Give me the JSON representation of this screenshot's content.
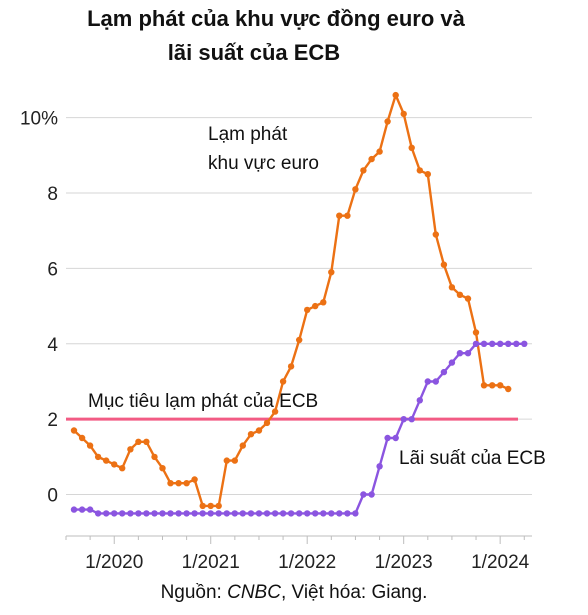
{
  "chart_data": {
    "type": "line",
    "title_line1": "Lạm phát của khu vực đồng euro và",
    "title_line2": "lãi suất của ECB",
    "y_ticks": [
      {
        "value": 0,
        "label": "0"
      },
      {
        "value": 2,
        "label": "2"
      },
      {
        "value": 4,
        "label": "4"
      },
      {
        "value": 6,
        "label": "6"
      },
      {
        "value": 8,
        "label": "8"
      },
      {
        "value": 10,
        "label": "10%"
      }
    ],
    "x_ticks": [
      {
        "value": 2020.0,
        "label": "1/2020"
      },
      {
        "value": 2021.0,
        "label": "1/2021"
      },
      {
        "value": 2022.0,
        "label": "1/2022"
      },
      {
        "value": 2023.0,
        "label": "1/2023"
      },
      {
        "value": 2024.0,
        "label": "1/2024"
      }
    ],
    "xlim": [
      2019.5,
      2024.33
    ],
    "ylim": [
      -1.1,
      11.0
    ],
    "grid": "horizontal",
    "target": {
      "value": 2.0,
      "label": "Mục tiêu lạm phát của ECB",
      "color": "#f25b84"
    },
    "series": [
      {
        "name": "Lạm phát khu vực euro",
        "label_line1": "Lạm phát",
        "label_line2": "khu vực euro",
        "color": "#ec7114",
        "points": [
          [
            2019.583,
            1.7
          ],
          [
            2019.667,
            1.5
          ],
          [
            2019.75,
            1.3
          ],
          [
            2019.833,
            1.0
          ],
          [
            2019.917,
            0.9
          ],
          [
            2020.0,
            0.8
          ],
          [
            2020.083,
            0.7
          ],
          [
            2020.167,
            1.2
          ],
          [
            2020.25,
            1.4
          ],
          [
            2020.333,
            1.4
          ],
          [
            2020.417,
            1.0
          ],
          [
            2020.5,
            0.7
          ],
          [
            2020.583,
            0.3
          ],
          [
            2020.667,
            0.3
          ],
          [
            2020.75,
            0.3
          ],
          [
            2020.833,
            0.4
          ],
          [
            2020.917,
            -0.3
          ],
          [
            2021.0,
            -0.3
          ],
          [
            2021.083,
            -0.3
          ],
          [
            2021.167,
            0.9
          ],
          [
            2021.25,
            0.9
          ],
          [
            2021.333,
            1.3
          ],
          [
            2021.417,
            1.6
          ],
          [
            2021.5,
            1.7
          ],
          [
            2021.583,
            1.9
          ],
          [
            2021.667,
            2.2
          ],
          [
            2021.75,
            3.0
          ],
          [
            2021.833,
            3.4
          ],
          [
            2021.917,
            4.1
          ],
          [
            2022.0,
            4.9
          ],
          [
            2022.083,
            5.0
          ],
          [
            2022.167,
            5.1
          ],
          [
            2022.25,
            5.9
          ],
          [
            2022.333,
            7.4
          ],
          [
            2022.417,
            7.4
          ],
          [
            2022.5,
            8.1
          ],
          [
            2022.583,
            8.6
          ],
          [
            2022.667,
            8.9
          ],
          [
            2022.75,
            9.1
          ],
          [
            2022.833,
            9.9
          ],
          [
            2022.917,
            10.6
          ],
          [
            2023.0,
            10.1
          ],
          [
            2023.083,
            9.2
          ],
          [
            2023.167,
            8.6
          ],
          [
            2023.25,
            8.5
          ],
          [
            2023.333,
            6.9
          ],
          [
            2023.417,
            6.1
          ],
          [
            2023.5,
            5.5
          ],
          [
            2023.583,
            5.3
          ],
          [
            2023.667,
            5.2
          ],
          [
            2023.75,
            4.3
          ],
          [
            2023.833,
            2.9
          ],
          [
            2023.917,
            2.9
          ],
          [
            2024.0,
            2.9
          ],
          [
            2024.083,
            2.8
          ]
        ]
      },
      {
        "name": "Lãi suất của ECB",
        "color": "#8b55e0",
        "points": [
          [
            2019.583,
            -0.4
          ],
          [
            2019.667,
            -0.4
          ],
          [
            2019.75,
            -0.4
          ],
          [
            2019.833,
            -0.5
          ],
          [
            2019.917,
            -0.5
          ],
          [
            2020.0,
            -0.5
          ],
          [
            2020.083,
            -0.5
          ],
          [
            2020.167,
            -0.5
          ],
          [
            2020.25,
            -0.5
          ],
          [
            2020.333,
            -0.5
          ],
          [
            2020.417,
            -0.5
          ],
          [
            2020.5,
            -0.5
          ],
          [
            2020.583,
            -0.5
          ],
          [
            2020.667,
            -0.5
          ],
          [
            2020.75,
            -0.5
          ],
          [
            2020.833,
            -0.5
          ],
          [
            2020.917,
            -0.5
          ],
          [
            2021.0,
            -0.5
          ],
          [
            2021.083,
            -0.5
          ],
          [
            2021.167,
            -0.5
          ],
          [
            2021.25,
            -0.5
          ],
          [
            2021.333,
            -0.5
          ],
          [
            2021.417,
            -0.5
          ],
          [
            2021.5,
            -0.5
          ],
          [
            2021.583,
            -0.5
          ],
          [
            2021.667,
            -0.5
          ],
          [
            2021.75,
            -0.5
          ],
          [
            2021.833,
            -0.5
          ],
          [
            2021.917,
            -0.5
          ],
          [
            2022.0,
            -0.5
          ],
          [
            2022.083,
            -0.5
          ],
          [
            2022.167,
            -0.5
          ],
          [
            2022.25,
            -0.5
          ],
          [
            2022.333,
            -0.5
          ],
          [
            2022.417,
            -0.5
          ],
          [
            2022.5,
            -0.5
          ],
          [
            2022.583,
            0.0
          ],
          [
            2022.667,
            0.0
          ],
          [
            2022.75,
            0.75
          ],
          [
            2022.833,
            1.5
          ],
          [
            2022.917,
            1.5
          ],
          [
            2023.0,
            2.0
          ],
          [
            2023.083,
            2.0
          ],
          [
            2023.167,
            2.5
          ],
          [
            2023.25,
            3.0
          ],
          [
            2023.333,
            3.0
          ],
          [
            2023.417,
            3.25
          ],
          [
            2023.5,
            3.5
          ],
          [
            2023.583,
            3.75
          ],
          [
            2023.667,
            3.75
          ],
          [
            2023.75,
            4.0
          ],
          [
            2023.833,
            4.0
          ],
          [
            2023.917,
            4.0
          ],
          [
            2024.0,
            4.0
          ],
          [
            2024.083,
            4.0
          ],
          [
            2024.167,
            4.0
          ],
          [
            2024.25,
            4.0
          ]
        ]
      }
    ]
  },
  "source": {
    "prefix": "Nguồn: ",
    "publisher": "CNBC",
    "suffix": ", Việt hóa: Giang."
  }
}
